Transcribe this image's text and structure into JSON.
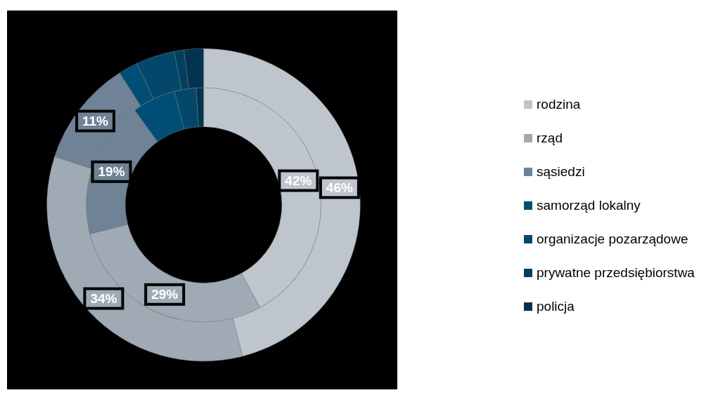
{
  "chart_data": {
    "type": "donut",
    "categories": [
      "rodzina",
      "rząd",
      "sąsiedzi",
      "samorząd lokalny",
      "organizacje pozarządowe",
      "prywatne przedsiębiorstwa",
      "policja"
    ],
    "colors": [
      "#bfc5cc",
      "#a0aab5",
      "#6f8296",
      "#004e75",
      "#03486b",
      "#003f5e",
      "#02334f"
    ],
    "series": [
      {
        "values": [
          46,
          34,
          11,
          2,
          4,
          1,
          2
        ],
        "value_labels": [
          "46%",
          "34%",
          "11%",
          null,
          null,
          null,
          null
        ]
      },
      {
        "values": [
          42,
          29,
          19,
          6,
          3,
          0,
          1
        ],
        "value_labels": [
          "42%",
          "29%",
          "19%",
          null,
          null,
          null,
          null
        ]
      }
    ],
    "legend": "right"
  }
}
